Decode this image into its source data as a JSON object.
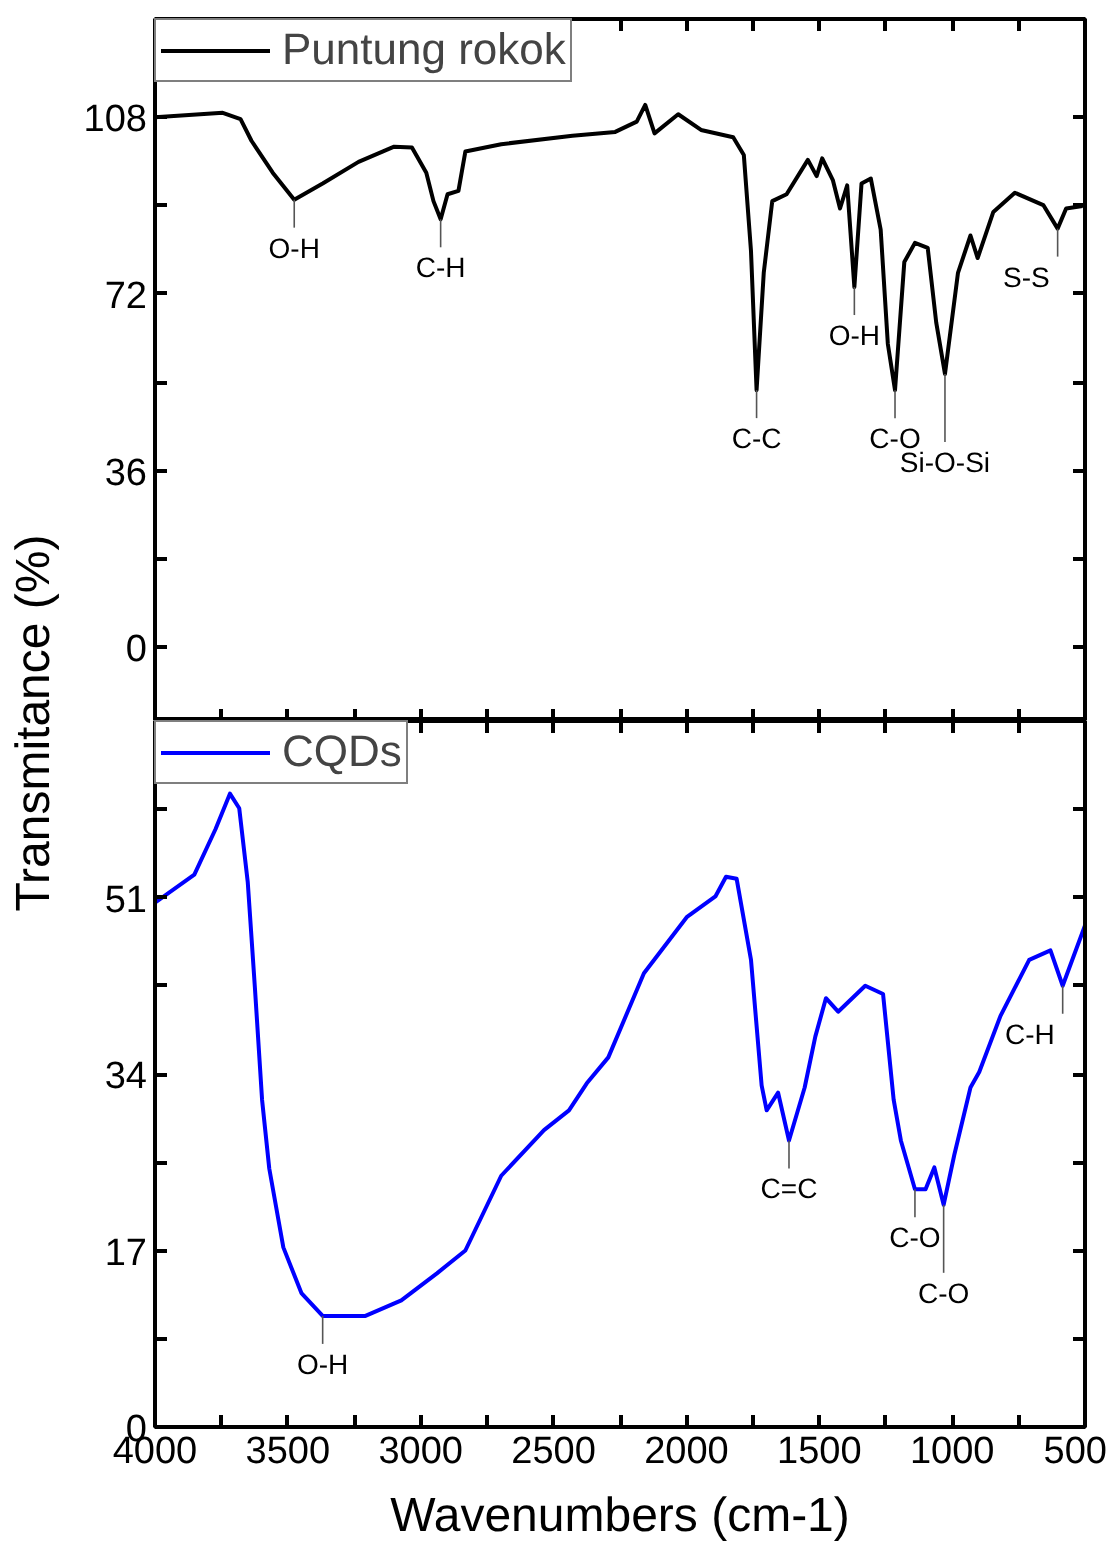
{
  "chart_data": [
    {
      "type": "line",
      "ylabel": "Transmitance (%)",
      "xlim": [
        4000,
        500
      ],
      "ylim": [
        -15,
        128
      ],
      "xticks": [
        {
          "value": 4000,
          "label": null
        },
        {
          "value": 3750,
          "label": null
        },
        {
          "value": 3500,
          "label": null
        },
        {
          "value": 3250,
          "label": null
        },
        {
          "value": 3000,
          "label": null
        },
        {
          "value": 2750,
          "label": null
        },
        {
          "value": 2500,
          "label": null
        },
        {
          "value": 2250,
          "label": null
        },
        {
          "value": 2000,
          "label": null
        },
        {
          "value": 1750,
          "label": null
        },
        {
          "value": 1500,
          "label": null
        },
        {
          "value": 1250,
          "label": null
        },
        {
          "value": 1000,
          "label": null
        },
        {
          "value": 750,
          "label": null
        },
        {
          "value": 500,
          "label": null
        }
      ],
      "yticks": [
        0,
        {
          "value": 18,
          "label": null
        },
        36,
        {
          "value": 54,
          "label": null
        },
        72,
        {
          "value": 90,
          "label": null
        },
        108
      ],
      "tick_labels": "y",
      "grid": false,
      "legend": "top left",
      "series": [
        {
          "name": "Puntung rokok",
          "color": "#000000",
          "x": [
            4000,
            3745,
            3678,
            3637,
            3557,
            3476,
            3369,
            3234,
            3100,
            3033,
            2979,
            2952,
            2925,
            2899,
            2858,
            2832,
            2697,
            2429,
            2268,
            2187,
            2155,
            2120,
            2031,
            1945,
            1824,
            1784,
            1757,
            1736,
            1709,
            1677,
            1623,
            1543,
            1510,
            1489,
            1449,
            1422,
            1395,
            1368,
            1341,
            1306,
            1269,
            1242,
            1215,
            1180,
            1140,
            1092,
            1060,
            1027,
            978,
            931,
            904,
            845,
            764,
            657,
            603,
            571,
            509
          ],
          "values": [
            108,
            108.9,
            107.6,
            103.2,
            96.7,
            91.2,
            94.5,
            98.9,
            102,
            101.8,
            96.7,
            90.9,
            87.2,
            92.3,
            93,
            101,
            102.5,
            104.2,
            105,
            107.1,
            110.5,
            104.7,
            108.6,
            105.4,
            103.9,
            100.3,
            80.7,
            52.4,
            76.3,
            90.9,
            92.3,
            99.3,
            96,
            99.6,
            95.2,
            89.4,
            94.1,
            73.4,
            94.5,
            95.5,
            85.1,
            61.8,
            52.4,
            78.5,
            82.4,
            81.4,
            66.2,
            55.7,
            76.3,
            83.9,
            79.3,
            88.7,
            92.6,
            90.1,
            85.3,
            89.4,
            89.9
          ]
        }
      ],
      "annotations": [
        {
          "text": "O-H",
          "x": 3476,
          "y": 91.2
        },
        {
          "text": "C-H",
          "x": 2925,
          "y": 87.2
        },
        {
          "text": "C-C",
          "x": 1736,
          "y": 52.4
        },
        {
          "text": "O-H",
          "x": 1368,
          "y": 73.4
        },
        {
          "text": "C-O",
          "x": 1215,
          "y": 52.4
        },
        {
          "text": "Si-O-Si",
          "x": 1027,
          "y": 55.7
        },
        {
          "text": "S-S",
          "x": 603,
          "y": 85.3
        }
      ]
    },
    {
      "type": "line",
      "xlabel": "Wavenumbers (cm-1)",
      "xlim": [
        4000,
        500
      ],
      "ylim": [
        0,
        68
      ],
      "xticks": [
        4000,
        {
          "value": 3750,
          "label": null
        },
        3500,
        {
          "value": 3250,
          "label": null
        },
        3000,
        {
          "value": 2750,
          "label": null
        },
        2500,
        {
          "value": 2250,
          "label": null
        },
        2000,
        {
          "value": 1750,
          "label": null
        },
        1500,
        {
          "value": 1250,
          "label": null
        },
        1000,
        {
          "value": 750,
          "label": null
        },
        500
      ],
      "yticks": [
        0,
        {
          "value": 8.5,
          "label": null
        },
        17,
        {
          "value": 25.5,
          "label": null
        },
        34,
        {
          "value": 42.5,
          "label": null
        },
        51,
        {
          "value": 59.5,
          "label": null
        }
      ],
      "grid": false,
      "legend": "top left",
      "series": [
        {
          "name": "CQDs",
          "color": "#0000ff",
          "x": [
            4000,
            3852,
            3772,
            3718,
            3683,
            3651,
            3624,
            3597,
            3570,
            3517,
            3449,
            3369,
            3208,
            3073,
            2939,
            2832,
            2697,
            2536,
            2442,
            2375,
            2294,
            2160,
            1999,
            1891,
            1851,
            1811,
            1757,
            1717,
            1698,
            1655,
            1614,
            1555,
            1515,
            1475,
            1429,
            1327,
            1260,
            1220,
            1193,
            1140,
            1100,
            1067,
            1032,
            992,
            931,
            898,
            818,
            710,
            630,
            584,
            500
          ],
          "values": [
            50.5,
            53.2,
            57.6,
            61,
            59.6,
            52.5,
            42.3,
            31.5,
            24.9,
            17.3,
            12.9,
            10.7,
            10.7,
            12.2,
            14.8,
            17,
            24.2,
            28.6,
            30.5,
            33.1,
            35.6,
            43.7,
            49.1,
            51.1,
            53,
            52.8,
            45,
            32.9,
            30.5,
            32.2,
            27.6,
            32.7,
            37.6,
            41.3,
            40,
            42.5,
            41.7,
            31.5,
            27.6,
            22.9,
            22.9,
            25,
            21.4,
            26.2,
            32.7,
            34.2,
            39.6,
            45,
            45.9,
            42.5,
            48.3
          ]
        }
      ],
      "annotations": [
        {
          "text": "O-H",
          "x": 3369,
          "y": 10.7
        },
        {
          "text": "C=C",
          "x": 1614,
          "y": 27.6
        },
        {
          "text": "C-O",
          "x": 1140,
          "y": 22.9
        },
        {
          "text": "C-O",
          "x": 1032,
          "y": 21.4
        },
        {
          "text": "C-H",
          "x": 584,
          "y": 42.5
        }
      ]
    }
  ]
}
